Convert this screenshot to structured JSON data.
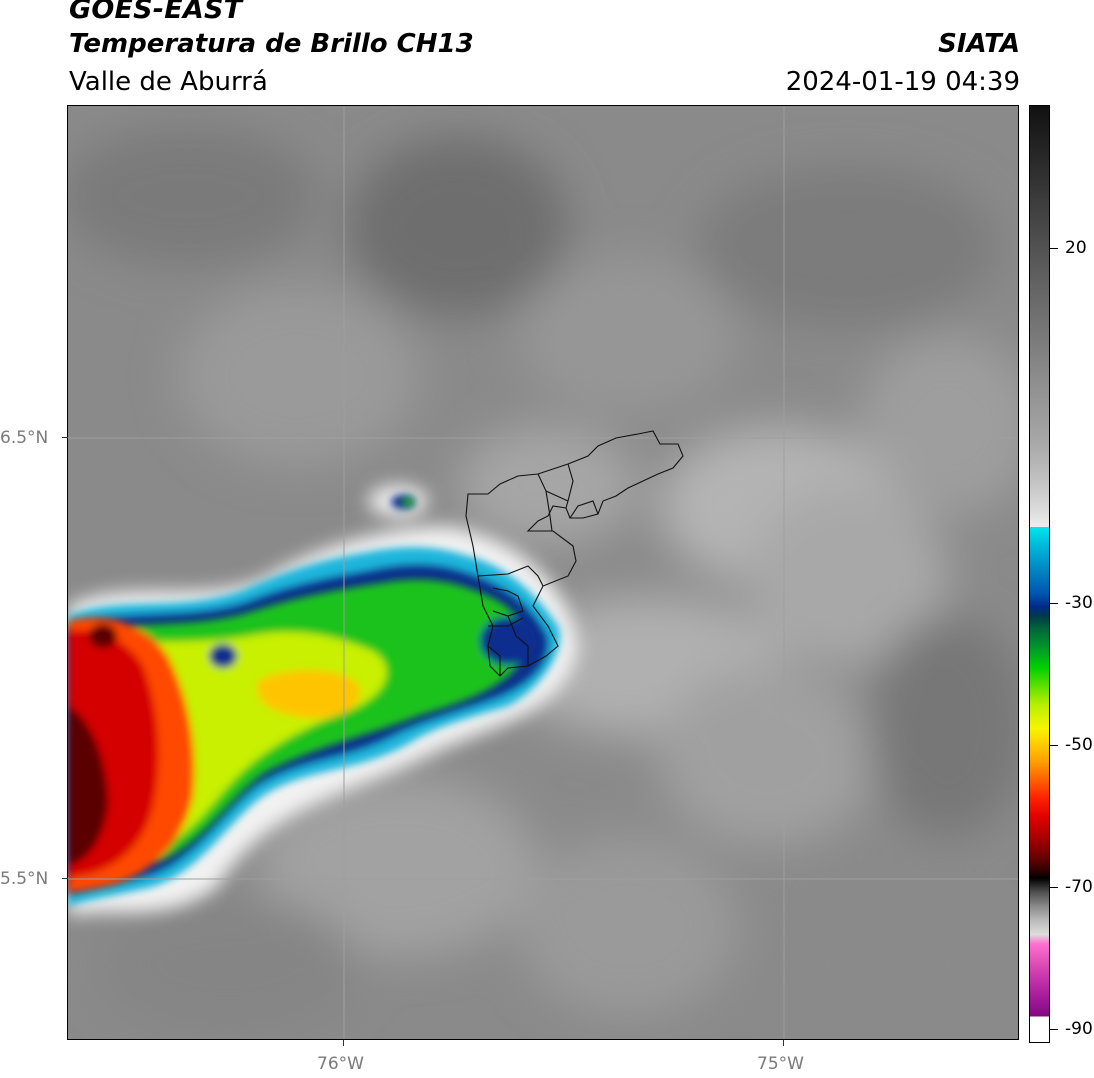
{
  "header": {
    "title": "GOES-EAST",
    "subtitle": "Temperatura de Brillo CH13",
    "region": "Valle de Aburrá",
    "org": "SIATA",
    "datetime": "2024-01-19 04:39"
  },
  "axes": {
    "lat_labels": [
      "6.5°N",
      "5.5°N"
    ],
    "lon_labels": [
      "76°W",
      "75°W"
    ]
  },
  "colorbar": {
    "tick_labels": [
      "20",
      "-30",
      "-50",
      "-70",
      "-90"
    ]
  },
  "colors": {
    "cold_core": "#e00000",
    "mid_cloud": "#00d000",
    "cloud_edge": "#002a88",
    "background_gray": "#8c8c8c"
  }
}
